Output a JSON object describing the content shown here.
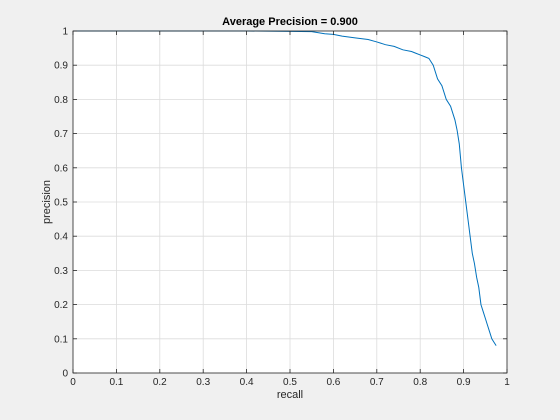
{
  "chart_data": {
    "type": "line",
    "title": "Average Precision = 0.900",
    "xlabel": "recall",
    "ylabel": "precision",
    "xlim": [
      0,
      1
    ],
    "ylim": [
      0,
      1
    ],
    "xticks": [
      "0",
      "0.1",
      "0.2",
      "0.3",
      "0.4",
      "0.5",
      "0.6",
      "0.7",
      "0.8",
      "0.9",
      "1"
    ],
    "yticks": [
      "0",
      "0.1",
      "0.2",
      "0.3",
      "0.4",
      "0.5",
      "0.6",
      "0.7",
      "0.8",
      "0.9",
      "1"
    ],
    "grid": true,
    "series": [
      {
        "color": "#0072bd",
        "x": [
          0.0,
          0.1,
          0.2,
          0.3,
          0.4,
          0.5,
          0.55,
          0.58,
          0.6,
          0.62,
          0.65,
          0.68,
          0.7,
          0.72,
          0.74,
          0.76,
          0.78,
          0.79,
          0.8,
          0.81,
          0.82,
          0.83,
          0.84,
          0.85,
          0.86,
          0.87,
          0.88,
          0.885,
          0.89,
          0.895,
          0.9,
          0.905,
          0.91,
          0.915,
          0.92,
          0.925,
          0.93,
          0.935,
          0.94,
          0.945,
          0.95,
          0.955,
          0.96,
          0.965,
          0.97,
          0.975
        ],
        "y": [
          1.0,
          1.0,
          1.0,
          1.0,
          1.0,
          0.999,
          0.998,
          0.992,
          0.99,
          0.985,
          0.98,
          0.975,
          0.968,
          0.96,
          0.955,
          0.945,
          0.94,
          0.935,
          0.93,
          0.925,
          0.92,
          0.9,
          0.86,
          0.84,
          0.8,
          0.78,
          0.74,
          0.71,
          0.67,
          0.6,
          0.55,
          0.5,
          0.45,
          0.4,
          0.35,
          0.32,
          0.28,
          0.25,
          0.2,
          0.18,
          0.16,
          0.14,
          0.12,
          0.1,
          0.09,
          0.08
        ]
      }
    ]
  }
}
